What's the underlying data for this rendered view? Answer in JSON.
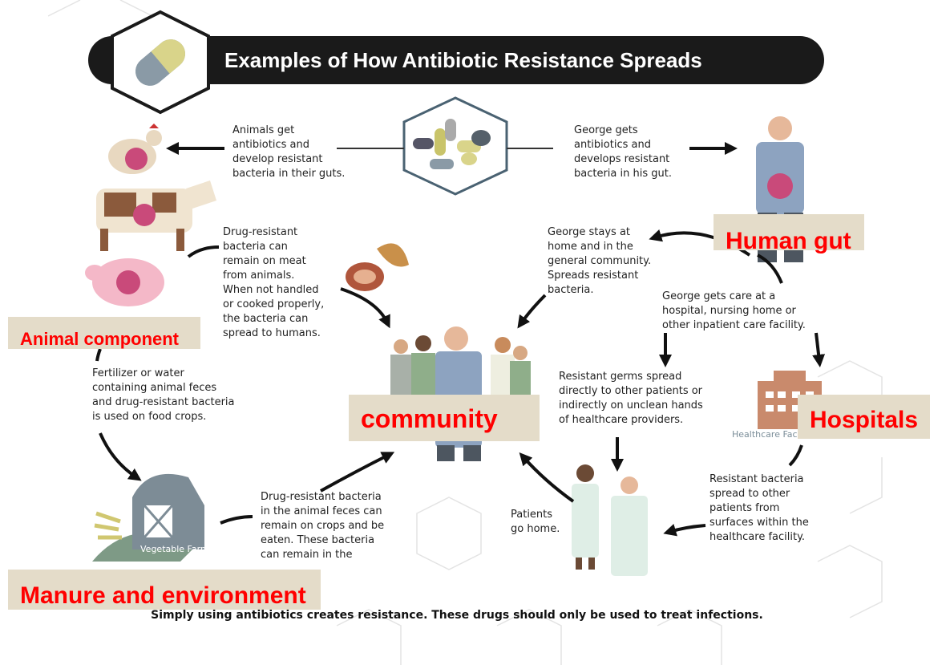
{
  "header": {
    "title": "Examples of How Antibiotic Resistance Spreads"
  },
  "captions": [
    {
      "lines": [
        "Animals get",
        "antibiotics and",
        "develop resistant",
        "bacteria in their guts."
      ]
    },
    {
      "lines": [
        "George gets",
        "antibiotics and",
        "develops resistant",
        "bacteria in his gut."
      ]
    },
    {
      "lines": [
        "Drug-resistant",
        "bacteria can",
        "remain on meat",
        "from animals.",
        "When not handled",
        "or cooked properly,",
        "the bacteria can",
        "spread to humans."
      ]
    },
    {
      "lines": [
        "George stays at",
        "home and in the",
        "general community.",
        "Spreads resistant",
        "bacteria."
      ]
    },
    {
      "lines": [
        "George gets care at a",
        "hospital, nursing home or",
        "other inpatient care facility."
      ]
    },
    {
      "lines": [
        "Fertilizer or water",
        "containing animal feces",
        "and drug-resistant bacteria",
        "is used on food crops."
      ]
    },
    {
      "lines": [
        "Resistant germs spread",
        "directly to other patients or",
        "indirectly on unclean hands",
        "of healthcare providers."
      ]
    },
    {
      "lines": [
        "Drug-resistant bacteria",
        "in the animal feces can",
        "remain on crops and be",
        "eaten. These bacteria",
        "can remain in the"
      ]
    },
    {
      "lines": [
        "Patients",
        "go home."
      ]
    },
    {
      "lines": [
        "Resistant bacteria",
        "spread to other",
        "patients from",
        "surfaces within the",
        "healthcare facility."
      ]
    }
  ],
  "illustration_labels": {
    "farm": "Vegetable Farm",
    "facility": "Healthcare Facility"
  },
  "overlay_labels": [
    "Human gut",
    "Animal component",
    "community",
    "Hospitals",
    "Manure and environment"
  ],
  "footer": "Simply using antibiotics creates resistance.  These drugs should only be used to treat infections."
}
